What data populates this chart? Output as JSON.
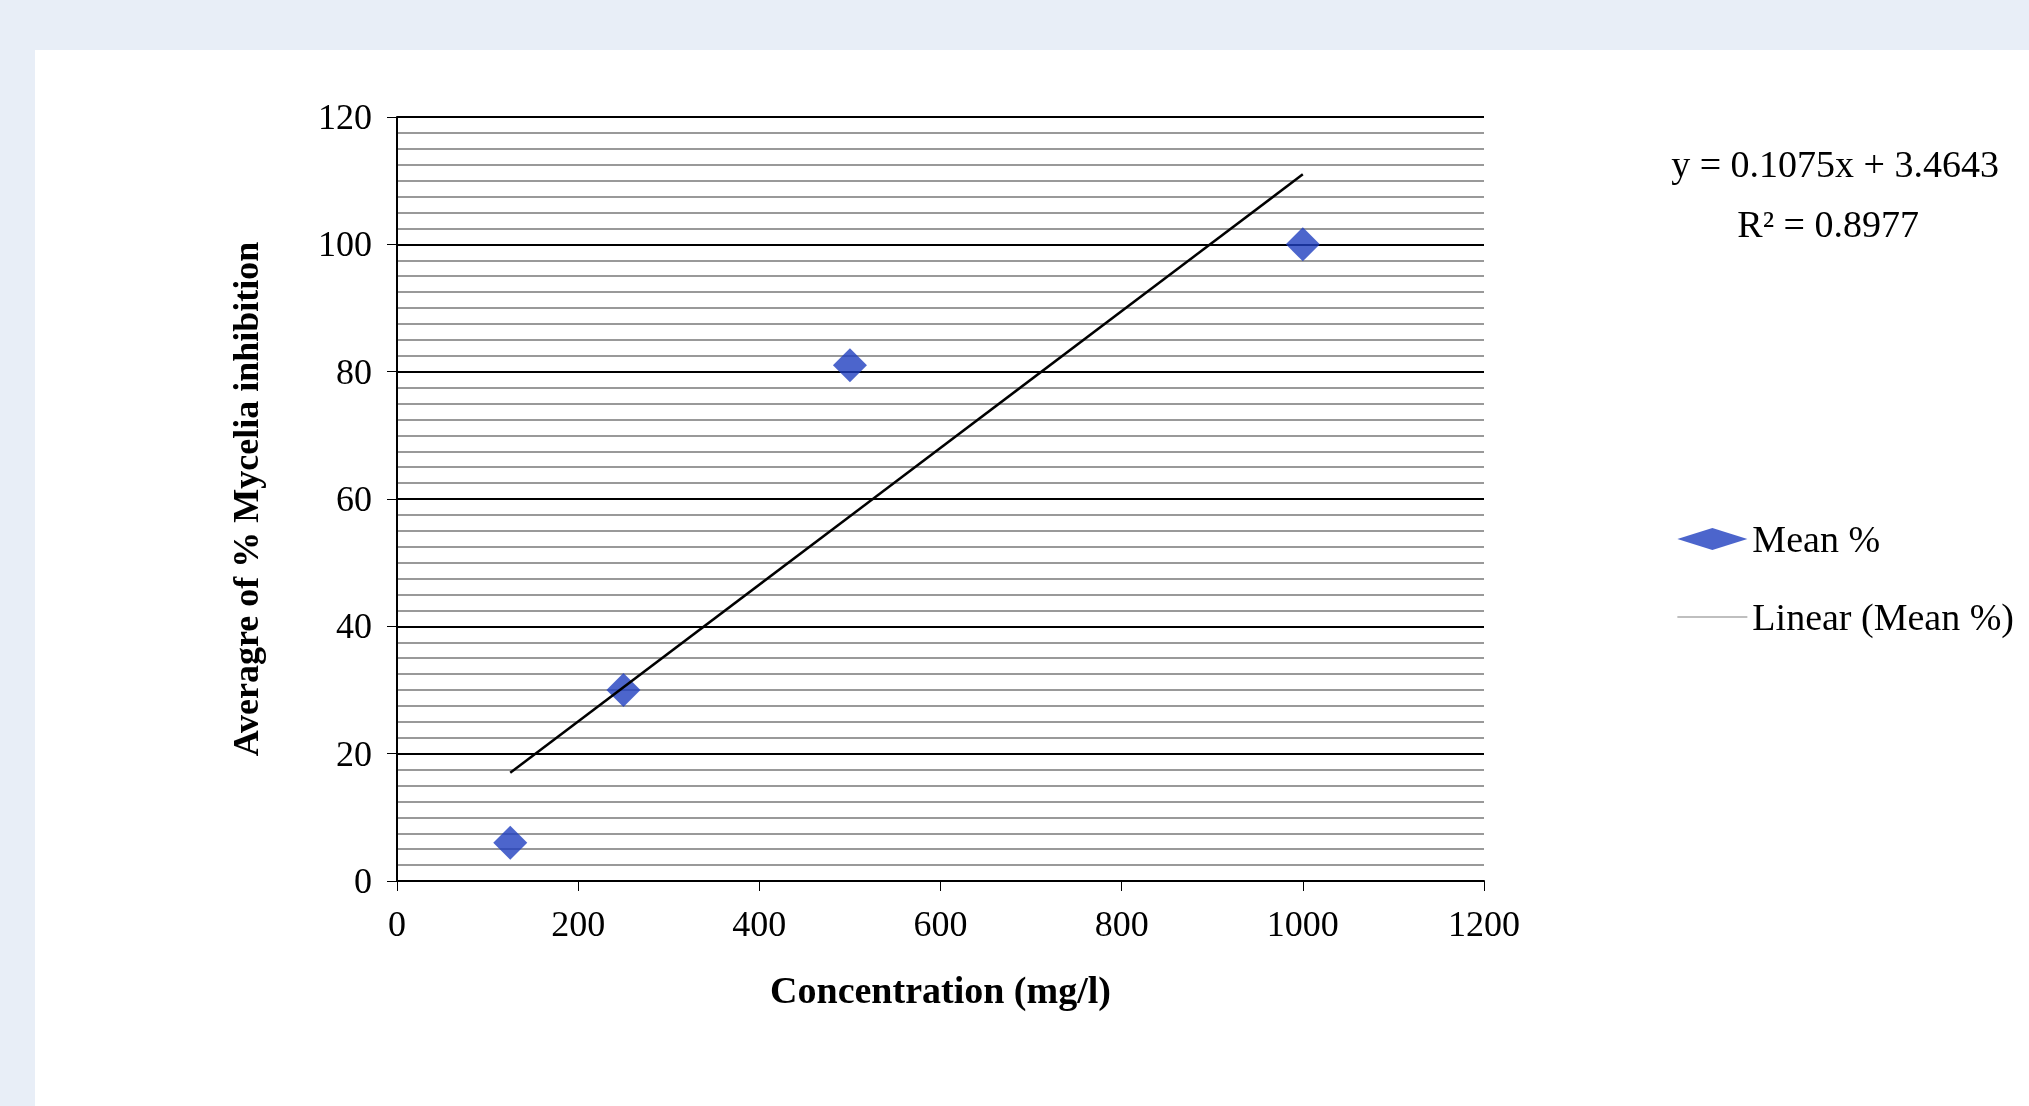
{
  "chart_data": {
    "type": "scatter",
    "xlabel": "Concentration (mg/l)",
    "ylabel": "Averagre of % Mycelia inhibition",
    "xlim": [
      0,
      1200
    ],
    "xticks": [
      0,
      200,
      400,
      600,
      800,
      1000,
      1200
    ],
    "ylim": [
      0,
      120
    ],
    "yticks": [
      0,
      20,
      40,
      60,
      80,
      100,
      120
    ],
    "series": [
      {
        "name": "Mean %",
        "color": "#1f3fbf",
        "marker": "diamond",
        "x": [
          125,
          250,
          500,
          1000
        ],
        "values": [
          6,
          30,
          81,
          100
        ]
      },
      {
        "name": "Linear (Mean %)",
        "type": "line",
        "color": "#000000",
        "marker": "none",
        "line_style": "solid",
        "x": [
          125,
          1000
        ],
        "values": [
          17,
          111
        ]
      }
    ],
    "annotations": [
      "y = 0.1075x + 3.4643",
      "R² = 0.8977"
    ],
    "grid": "y",
    "legend": "right"
  }
}
